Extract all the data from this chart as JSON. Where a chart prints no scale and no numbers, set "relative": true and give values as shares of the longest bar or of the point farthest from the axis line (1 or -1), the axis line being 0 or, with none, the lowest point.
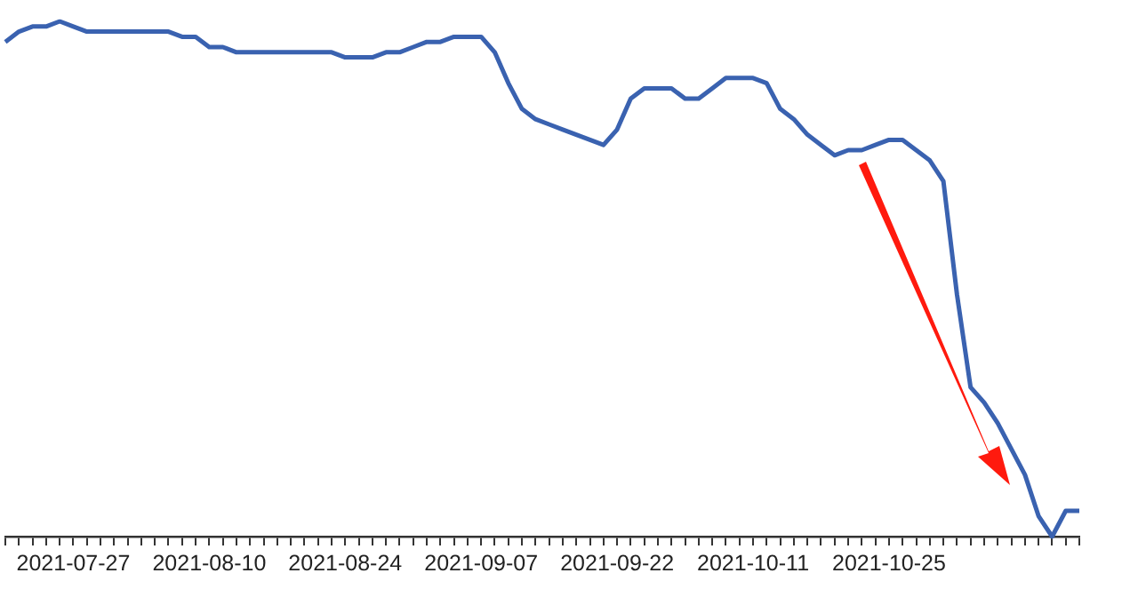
{
  "chart_data": {
    "type": "line",
    "relative": true,
    "color": "#3a62b0",
    "categories": [
      null,
      null,
      null,
      null,
      null,
      "2021-07-27",
      null,
      null,
      null,
      null,
      null,
      null,
      null,
      null,
      null,
      "2021-08-10",
      null,
      null,
      null,
      null,
      null,
      null,
      null,
      null,
      null,
      "2021-08-24",
      null,
      null,
      null,
      null,
      null,
      null,
      null,
      null,
      null,
      "2021-09-07",
      null,
      null,
      null,
      null,
      null,
      null,
      null,
      null,
      null,
      "2021-09-22",
      null,
      null,
      null,
      null,
      null,
      null,
      null,
      null,
      null,
      "2021-10-11",
      null,
      null,
      null,
      null,
      null,
      null,
      null,
      null,
      null,
      "2021-10-25",
      null,
      null,
      null,
      null,
      null,
      null,
      null,
      null,
      null,
      null,
      null,
      null,
      null,
      null
    ],
    "values": [
      0.96,
      0.98,
      0.99,
      0.99,
      1,
      0.99,
      0.98,
      0.98,
      0.98,
      0.98,
      0.98,
      0.98,
      0.98,
      0.97,
      0.97,
      0.95,
      0.95,
      0.94,
      0.94,
      0.94,
      0.94,
      0.94,
      0.94,
      0.94,
      0.94,
      0.93,
      0.93,
      0.93,
      0.94,
      0.94,
      0.95,
      0.96,
      0.96,
      0.97,
      0.97,
      0.97,
      0.94,
      0.88,
      0.83,
      0.81,
      0.8,
      0.79,
      0.78,
      0.77,
      0.76,
      0.79,
      0.85,
      0.87,
      0.87,
      0.87,
      0.85,
      0.85,
      0.87,
      0.89,
      0.89,
      0.89,
      0.88,
      0.83,
      0.81,
      0.78,
      0.76,
      0.74,
      0.75,
      0.75,
      0.76,
      0.77,
      0.77,
      0.75,
      0.73,
      0.69,
      0.47,
      0.29,
      0.26,
      0.22,
      0.17,
      0.12,
      0.04,
      0,
      0.05,
      0.05
    ]
  }
}
